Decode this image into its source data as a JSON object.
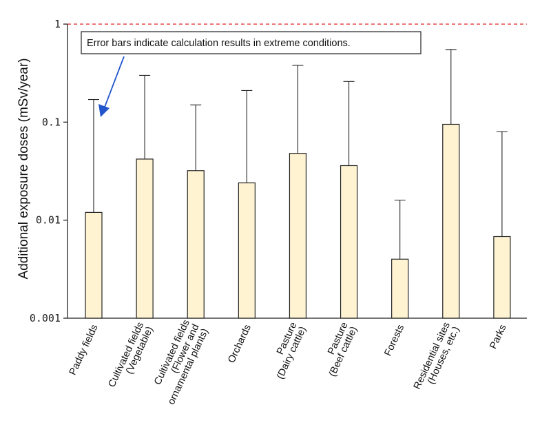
{
  "chart_data": {
    "type": "bar",
    "ylabel": "Additional exposure doses (mSv/year)",
    "yscale": "log",
    "ylim": [
      0.001,
      1
    ],
    "yticks": [
      {
        "value": 0.001,
        "label": "0.001"
      },
      {
        "value": 0.01,
        "label": "0.01"
      },
      {
        "value": 0.1,
        "label": "0.1"
      },
      {
        "value": 1,
        "label": "1"
      }
    ],
    "reference_line": {
      "value": 1,
      "color": "#e02020",
      "style": "dashed"
    },
    "bar_color": "#fff3d2",
    "categories": [
      [
        "Paddy fields"
      ],
      [
        "Cultivated fields",
        "(Vegetable)"
      ],
      [
        "Cultivated fields",
        "(Flower and",
        "ornamental plants)"
      ],
      [
        "Orchards"
      ],
      [
        "Pasture",
        "(Dairy cattle)"
      ],
      [
        "Pasture",
        "(Beef cattle)"
      ],
      [
        "Forests"
      ],
      [
        "Residential sites",
        "(Houses, etc.)"
      ],
      [
        "Parks"
      ]
    ],
    "values": [
      0.012,
      0.042,
      0.032,
      0.024,
      0.048,
      0.036,
      0.004,
      0.095,
      0.0068
    ],
    "error_upper": [
      0.17,
      0.3,
      0.15,
      0.21,
      0.38,
      0.26,
      0.016,
      0.55,
      0.08
    ],
    "annotation": {
      "text": "Error bars indicate calculation results in extreme conditions.",
      "arrow_color": "#2255cc"
    },
    "grid": false,
    "legend": "none"
  }
}
